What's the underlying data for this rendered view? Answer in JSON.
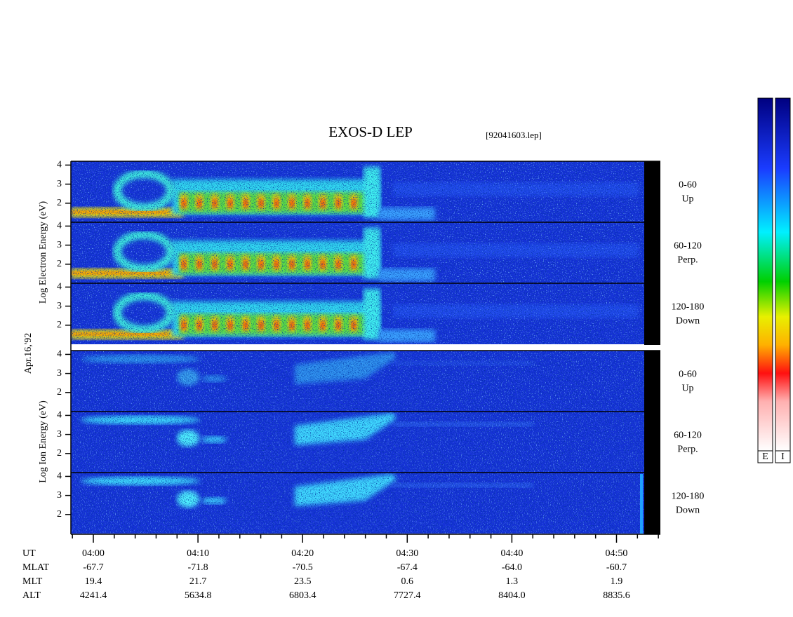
{
  "header": {
    "title": "EXOS-D LEP",
    "file": "[92041603.lep]"
  },
  "date": "Apr.16,'92",
  "groups": [
    {
      "label": "Log Electron Energy (eV)"
    },
    {
      "label": "Log Ion Energy (eV)"
    }
  ],
  "panels": [
    {
      "ylim": [
        1,
        4.2
      ],
      "yticks": [
        2,
        3,
        4
      ],
      "pitch": "0-60",
      "direction": "Up"
    },
    {
      "ylim": [
        1,
        4.2
      ],
      "yticks": [
        2,
        3,
        4
      ],
      "pitch": "60-120",
      "direction": "Perp."
    },
    {
      "ylim": [
        1,
        4.2
      ],
      "yticks": [
        2,
        3,
        4
      ],
      "pitch": "120-180",
      "direction": "Down"
    },
    {
      "ylim": [
        1,
        4.2
      ],
      "yticks": [
        2,
        3,
        4
      ],
      "pitch": "0-60",
      "direction": "Up"
    },
    {
      "ylim": [
        1,
        4.2
      ],
      "yticks": [
        2,
        3,
        4
      ],
      "pitch": "60-120",
      "direction": "Perp."
    },
    {
      "ylim": [
        1,
        4.2
      ],
      "yticks": [
        2,
        3,
        4
      ],
      "pitch": "120-180",
      "direction": "Down"
    }
  ],
  "ephemeris": {
    "rows": [
      {
        "label": "UT",
        "values": [
          "04:00",
          "04:10",
          "04:20",
          "04:30",
          "04:40",
          "04:50"
        ]
      },
      {
        "label": "MLAT",
        "values": [
          "-67.7",
          "-71.8",
          "-70.5",
          "-67.4",
          "-64.0",
          "-60.7"
        ]
      },
      {
        "label": "MLT",
        "values": [
          "19.4",
          "21.7",
          "23.5",
          "0.6",
          "1.3",
          "1.9"
        ]
      },
      {
        "label": "ALT",
        "values": [
          "4241.4",
          "5634.8",
          "6803.4",
          "7727.4",
          "8404.0",
          "8835.6"
        ]
      }
    ]
  },
  "colorbar": {
    "labels": [
      "E",
      "I"
    ]
  }
}
